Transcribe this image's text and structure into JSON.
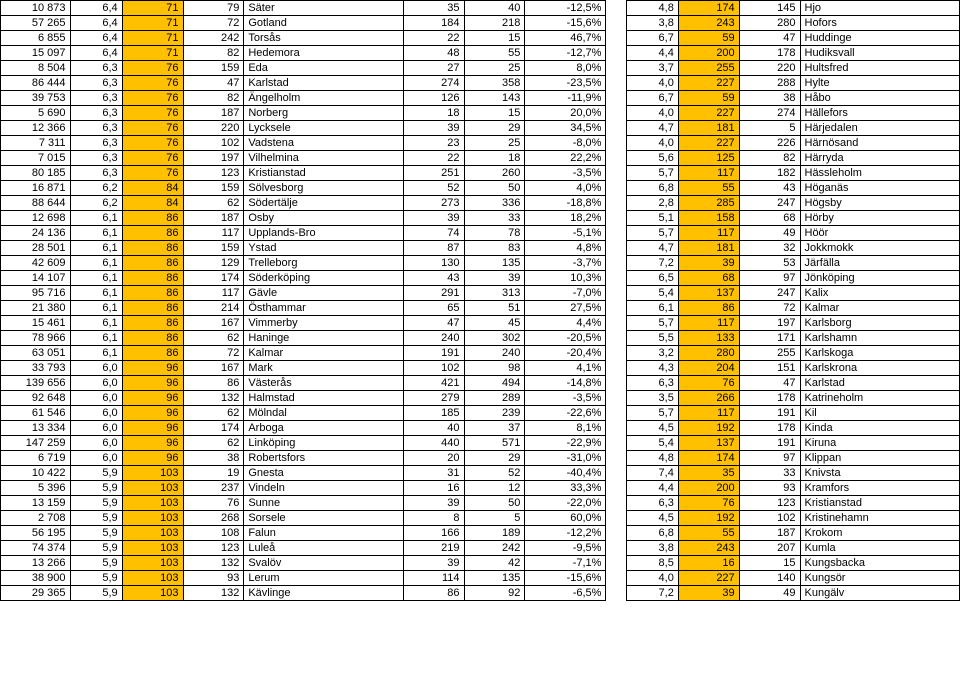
{
  "highlight_color": "#ffc000",
  "rows": [
    {
      "a": "10 873",
      "b": "6,4",
      "c": "71",
      "d": "79",
      "e": "Säter",
      "f": "35",
      "g": "40",
      "h": "-12,5%",
      "i": "4,8",
      "j": "174",
      "k": "145",
      "l": "Hjo"
    },
    {
      "a": "57 265",
      "b": "6,4",
      "c": "71",
      "d": "72",
      "e": "Gotland",
      "f": "184",
      "g": "218",
      "h": "-15,6%",
      "i": "3,8",
      "j": "243",
      "k": "280",
      "l": "Hofors"
    },
    {
      "a": "6 855",
      "b": "6,4",
      "c": "71",
      "d": "242",
      "e": "Torsås",
      "f": "22",
      "g": "15",
      "h": "46,7%",
      "i": "6,7",
      "j": "59",
      "k": "47",
      "l": "Huddinge"
    },
    {
      "a": "15 097",
      "b": "6,4",
      "c": "71",
      "d": "82",
      "e": "Hedemora",
      "f": "48",
      "g": "55",
      "h": "-12,7%",
      "i": "4,4",
      "j": "200",
      "k": "178",
      "l": "Hudiksvall"
    },
    {
      "a": "8 504",
      "b": "6,3",
      "c": "76",
      "d": "159",
      "e": "Eda",
      "f": "27",
      "g": "25",
      "h": "8,0%",
      "i": "3,7",
      "j": "255",
      "k": "220",
      "l": "Hultsfred"
    },
    {
      "a": "86 444",
      "b": "6,3",
      "c": "76",
      "d": "47",
      "e": "Karlstad",
      "f": "274",
      "g": "358",
      "h": "-23,5%",
      "i": "4,0",
      "j": "227",
      "k": "288",
      "l": "Hylte"
    },
    {
      "a": "39 753",
      "b": "6,3",
      "c": "76",
      "d": "82",
      "e": "Ängelholm",
      "f": "126",
      "g": "143",
      "h": "-11,9%",
      "i": "6,7",
      "j": "59",
      "k": "38",
      "l": "Håbo"
    },
    {
      "a": "5 690",
      "b": "6,3",
      "c": "76",
      "d": "187",
      "e": "Norberg",
      "f": "18",
      "g": "15",
      "h": "20,0%",
      "i": "4,0",
      "j": "227",
      "k": "274",
      "l": "Hällefors"
    },
    {
      "a": "12 366",
      "b": "6,3",
      "c": "76",
      "d": "220",
      "e": "Lycksele",
      "f": "39",
      "g": "29",
      "h": "34,5%",
      "i": "4,7",
      "j": "181",
      "k": "5",
      "l": "Härjedalen"
    },
    {
      "a": "7 311",
      "b": "6,3",
      "c": "76",
      "d": "102",
      "e": "Vadstena",
      "f": "23",
      "g": "25",
      "h": "-8,0%",
      "i": "4,0",
      "j": "227",
      "k": "226",
      "l": "Härnösand"
    },
    {
      "a": "7 015",
      "b": "6,3",
      "c": "76",
      "d": "197",
      "e": "Vilhelmina",
      "f": "22",
      "g": "18",
      "h": "22,2%",
      "i": "5,6",
      "j": "125",
      "k": "82",
      "l": "Härryda"
    },
    {
      "a": "80 185",
      "b": "6,3",
      "c": "76",
      "d": "123",
      "e": "Kristianstad",
      "f": "251",
      "g": "260",
      "h": "-3,5%",
      "i": "5,7",
      "j": "117",
      "k": "182",
      "l": "Hässleholm"
    },
    {
      "a": "16 871",
      "b": "6,2",
      "c": "84",
      "d": "159",
      "e": "Sölvesborg",
      "f": "52",
      "g": "50",
      "h": "4,0%",
      "i": "6,8",
      "j": "55",
      "k": "43",
      "l": "Höganäs"
    },
    {
      "a": "88 644",
      "b": "6,2",
      "c": "84",
      "d": "62",
      "e": "Södertälje",
      "f": "273",
      "g": "336",
      "h": "-18,8%",
      "i": "2,8",
      "j": "285",
      "k": "247",
      "l": "Högsby"
    },
    {
      "a": "12 698",
      "b": "6,1",
      "c": "86",
      "d": "187",
      "e": "Osby",
      "f": "39",
      "g": "33",
      "h": "18,2%",
      "i": "5,1",
      "j": "158",
      "k": "68",
      "l": "Hörby"
    },
    {
      "a": "24 136",
      "b": "6,1",
      "c": "86",
      "d": "117",
      "e": "Upplands-Bro",
      "f": "74",
      "g": "78",
      "h": "-5,1%",
      "i": "5,7",
      "j": "117",
      "k": "49",
      "l": "Höör"
    },
    {
      "a": "28 501",
      "b": "6,1",
      "c": "86",
      "d": "159",
      "e": "Ystad",
      "f": "87",
      "g": "83",
      "h": "4,8%",
      "i": "4,7",
      "j": "181",
      "k": "32",
      "l": "Jokkmokk"
    },
    {
      "a": "42 609",
      "b": "6,1",
      "c": "86",
      "d": "129",
      "e": "Trelleborg",
      "f": "130",
      "g": "135",
      "h": "-3,7%",
      "i": "7,2",
      "j": "39",
      "k": "53",
      "l": "Järfälla"
    },
    {
      "a": "14 107",
      "b": "6,1",
      "c": "86",
      "d": "174",
      "e": "Söderköping",
      "f": "43",
      "g": "39",
      "h": "10,3%",
      "i": "6,5",
      "j": "68",
      "k": "97",
      "l": "Jönköping"
    },
    {
      "a": "95 716",
      "b": "6,1",
      "c": "86",
      "d": "117",
      "e": "Gävle",
      "f": "291",
      "g": "313",
      "h": "-7,0%",
      "i": "5,4",
      "j": "137",
      "k": "247",
      "l": "Kalix"
    },
    {
      "a": "21 380",
      "b": "6,1",
      "c": "86",
      "d": "214",
      "e": "Östhammar",
      "f": "65",
      "g": "51",
      "h": "27,5%",
      "i": "6,1",
      "j": "86",
      "k": "72",
      "l": "Kalmar"
    },
    {
      "a": "15 461",
      "b": "6,1",
      "c": "86",
      "d": "167",
      "e": "Vimmerby",
      "f": "47",
      "g": "45",
      "h": "4,4%",
      "i": "5,7",
      "j": "117",
      "k": "197",
      "l": "Karlsborg"
    },
    {
      "a": "78 966",
      "b": "6,1",
      "c": "86",
      "d": "62",
      "e": "Haninge",
      "f": "240",
      "g": "302",
      "h": "-20,5%",
      "i": "5,5",
      "j": "133",
      "k": "171",
      "l": "Karlshamn"
    },
    {
      "a": "63 051",
      "b": "6,1",
      "c": "86",
      "d": "72",
      "e": "Kalmar",
      "f": "191",
      "g": "240",
      "h": "-20,4%",
      "i": "3,2",
      "j": "280",
      "k": "255",
      "l": "Karlskoga"
    },
    {
      "a": "33 793",
      "b": "6,0",
      "c": "96",
      "d": "167",
      "e": "Mark",
      "f": "102",
      "g": "98",
      "h": "4,1%",
      "i": "4,3",
      "j": "204",
      "k": "151",
      "l": "Karlskrona"
    },
    {
      "a": "139 656",
      "b": "6,0",
      "c": "96",
      "d": "86",
      "e": "Västerås",
      "f": "421",
      "g": "494",
      "h": "-14,8%",
      "i": "6,3",
      "j": "76",
      "k": "47",
      "l": "Karlstad"
    },
    {
      "a": "92 648",
      "b": "6,0",
      "c": "96",
      "d": "132",
      "e": "Halmstad",
      "f": "279",
      "g": "289",
      "h": "-3,5%",
      "i": "3,5",
      "j": "266",
      "k": "178",
      "l": "Katrineholm"
    },
    {
      "a": "61 546",
      "b": "6,0",
      "c": "96",
      "d": "62",
      "e": "Mölndal",
      "f": "185",
      "g": "239",
      "h": "-22,6%",
      "i": "5,7",
      "j": "117",
      "k": "191",
      "l": "Kil"
    },
    {
      "a": "13 334",
      "b": "6,0",
      "c": "96",
      "d": "174",
      "e": "Arboga",
      "f": "40",
      "g": "37",
      "h": "8,1%",
      "i": "4,5",
      "j": "192",
      "k": "178",
      "l": "Kinda"
    },
    {
      "a": "147 259",
      "b": "6,0",
      "c": "96",
      "d": "62",
      "e": "Linköping",
      "f": "440",
      "g": "571",
      "h": "-22,9%",
      "i": "5,4",
      "j": "137",
      "k": "191",
      "l": "Kiruna"
    },
    {
      "a": "6 719",
      "b": "6,0",
      "c": "96",
      "d": "38",
      "e": "Robertsfors",
      "f": "20",
      "g": "29",
      "h": "-31,0%",
      "i": "4,8",
      "j": "174",
      "k": "97",
      "l": "Klippan"
    },
    {
      "a": "10 422",
      "b": "5,9",
      "c": "103",
      "d": "19",
      "e": "Gnesta",
      "f": "31",
      "g": "52",
      "h": "-40,4%",
      "i": "7,4",
      "j": "35",
      "k": "33",
      "l": "Knivsta"
    },
    {
      "a": "5 396",
      "b": "5,9",
      "c": "103",
      "d": "237",
      "e": "Vindeln",
      "f": "16",
      "g": "12",
      "h": "33,3%",
      "i": "4,4",
      "j": "200",
      "k": "93",
      "l": "Kramfors"
    },
    {
      "a": "13 159",
      "b": "5,9",
      "c": "103",
      "d": "76",
      "e": "Sunne",
      "f": "39",
      "g": "50",
      "h": "-22,0%",
      "i": "6,3",
      "j": "76",
      "k": "123",
      "l": "Kristianstad"
    },
    {
      "a": "2 708",
      "b": "5,9",
      "c": "103",
      "d": "268",
      "e": "Sorsele",
      "f": "8",
      "g": "5",
      "h": "60,0%",
      "i": "4,5",
      "j": "192",
      "k": "102",
      "l": "Kristinehamn"
    },
    {
      "a": "56 195",
      "b": "5,9",
      "c": "103",
      "d": "108",
      "e": "Falun",
      "f": "166",
      "g": "189",
      "h": "-12,2%",
      "i": "6,8",
      "j": "55",
      "k": "187",
      "l": "Krokom"
    },
    {
      "a": "74 374",
      "b": "5,9",
      "c": "103",
      "d": "123",
      "e": "Luleå",
      "f": "219",
      "g": "242",
      "h": "-9,5%",
      "i": "3,8",
      "j": "243",
      "k": "207",
      "l": "Kumla"
    },
    {
      "a": "13 266",
      "b": "5,9",
      "c": "103",
      "d": "132",
      "e": "Svalöv",
      "f": "39",
      "g": "42",
      "h": "-7,1%",
      "i": "8,5",
      "j": "16",
      "k": "15",
      "l": "Kungsbacka"
    },
    {
      "a": "38 900",
      "b": "5,9",
      "c": "103",
      "d": "93",
      "e": "Lerum",
      "f": "114",
      "g": "135",
      "h": "-15,6%",
      "i": "4,0",
      "j": "227",
      "k": "140",
      "l": "Kungsör"
    },
    {
      "a": "29 365",
      "b": "5,9",
      "c": "103",
      "d": "132",
      "e": "Kävlinge",
      "f": "86",
      "g": "92",
      "h": "-6,5%",
      "i": "7,2",
      "j": "39",
      "k": "49",
      "l": "Kungälv"
    }
  ]
}
